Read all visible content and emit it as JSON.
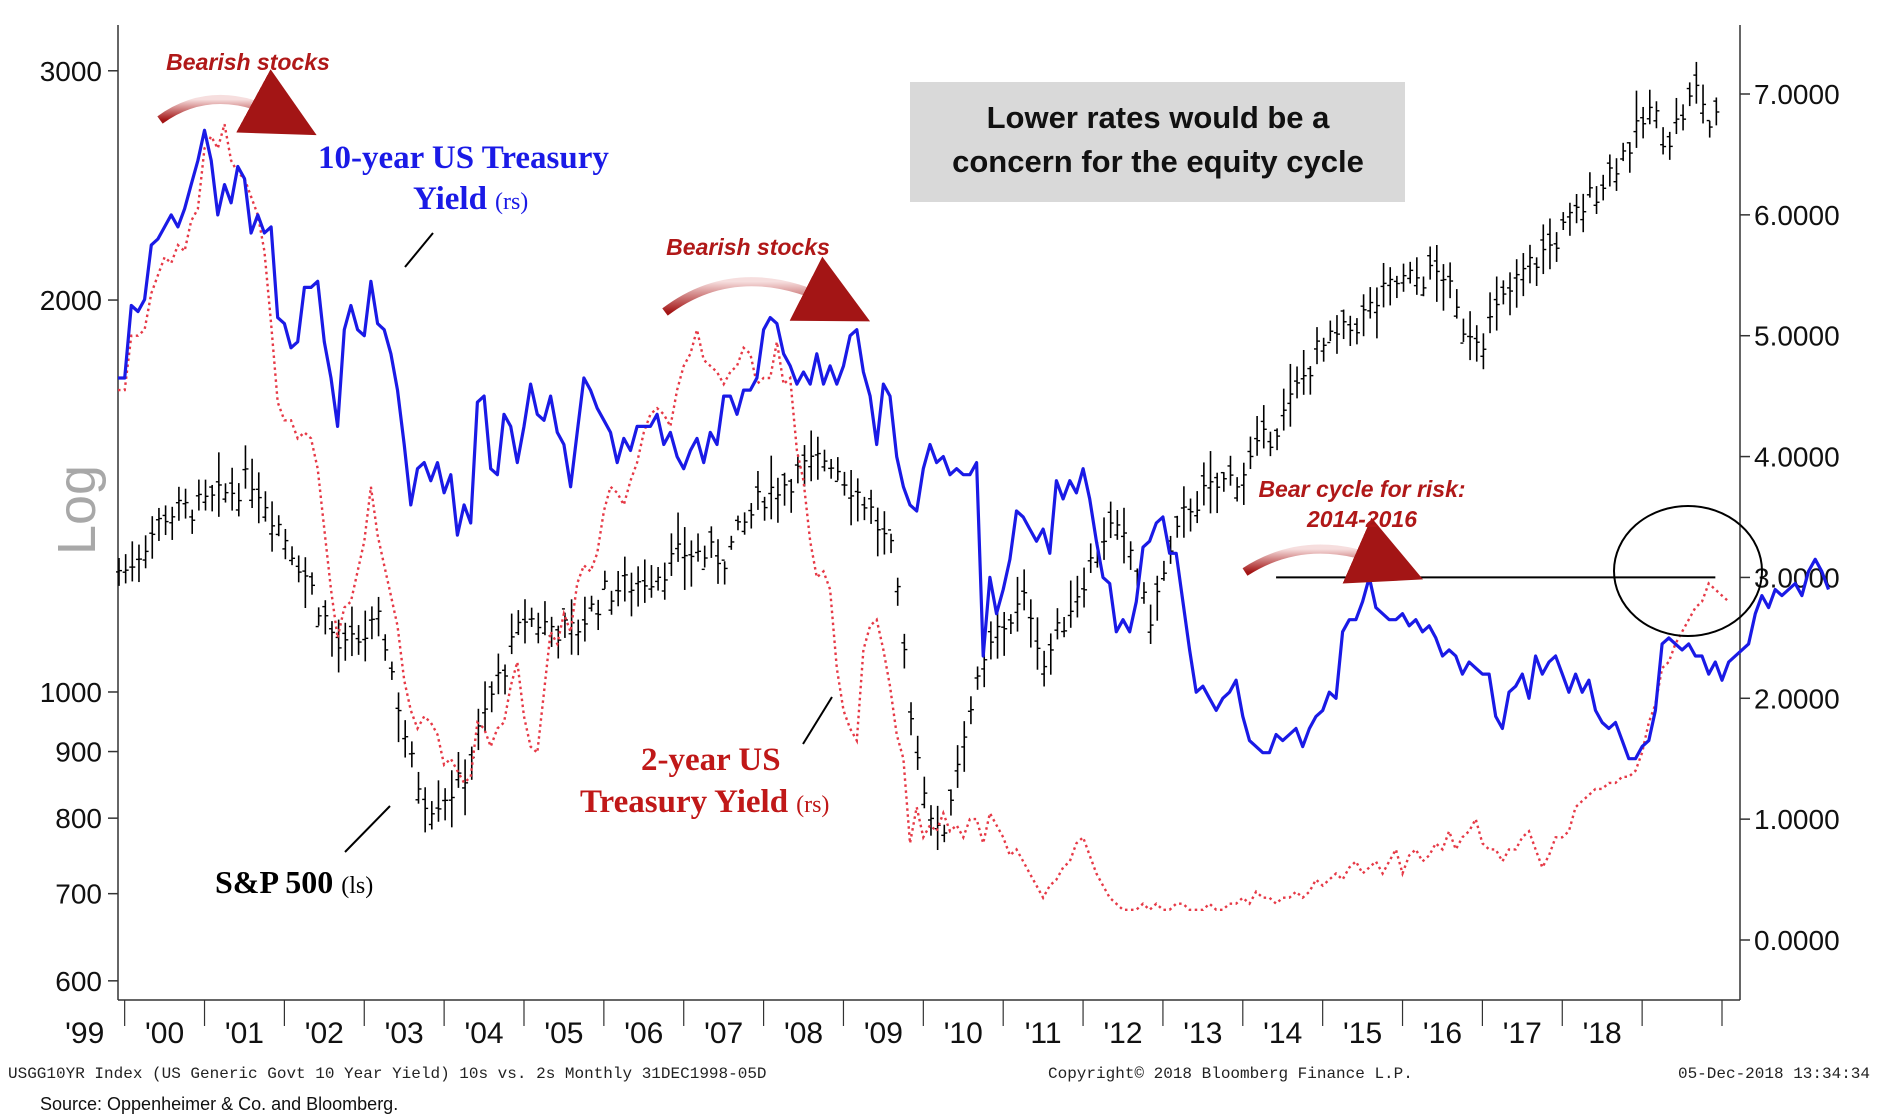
{
  "chart_data": {
    "type": "line",
    "x_start": "1998-12",
    "x_end": "2018-12",
    "frequency": "Monthly",
    "left_axis": {
      "scale": "log",
      "label": "Log",
      "ticks": [
        600,
        700,
        800,
        900,
        1000,
        2000,
        3000
      ],
      "range": [
        580,
        3400
      ]
    },
    "right_axis": {
      "ticks": [
        "7.0000",
        "6.0000",
        "5.0000",
        "4.0000",
        "3.0000",
        "2.0000",
        "1.0000",
        "0.0000"
      ],
      "range": [
        -0.4,
        7.3
      ]
    },
    "x_tick_labels": [
      "'99",
      "'00",
      "'01",
      "'02",
      "'03",
      "'04",
      "'05",
      "'06",
      "'07",
      "'08",
      "'09",
      "'10",
      "'11",
      "'12",
      "'13",
      "'14",
      "'15",
      "'16",
      "'17",
      "'18"
    ],
    "series": [
      {
        "name": "S&P 500",
        "axis": "left",
        "style": "ohlc-bars",
        "color": "#000000",
        "keypoints": [
          [
            1999.0,
            1240
          ],
          [
            1999.5,
            1370
          ],
          [
            2000.0,
            1390
          ],
          [
            2000.6,
            1460
          ],
          [
            2001.2,
            1250
          ],
          [
            2001.7,
            1070
          ],
          [
            2002.2,
            1130
          ],
          [
            2002.6,
            870
          ],
          [
            2002.8,
            820
          ],
          [
            2003.2,
            850
          ],
          [
            2003.6,
            1000
          ],
          [
            2004.0,
            1140
          ],
          [
            2004.6,
            1110
          ],
          [
            2005.0,
            1190
          ],
          [
            2005.6,
            1230
          ],
          [
            2006.0,
            1280
          ],
          [
            2006.5,
            1270
          ],
          [
            2007.0,
            1420
          ],
          [
            2007.8,
            1520
          ],
          [
            2008.3,
            1390
          ],
          [
            2008.6,
            1270
          ],
          [
            2008.9,
            900
          ],
          [
            2009.2,
            760
          ],
          [
            2009.5,
            940
          ],
          [
            2009.9,
            1110
          ],
          [
            2010.3,
            1180
          ],
          [
            2010.5,
            1050
          ],
          [
            2010.9,
            1190
          ],
          [
            2011.3,
            1340
          ],
          [
            2011.6,
            1280
          ],
          [
            2011.8,
            1130
          ],
          [
            2012.3,
            1390
          ],
          [
            2012.7,
            1440
          ],
          [
            2013.0,
            1480
          ],
          [
            2013.5,
            1630
          ],
          [
            2013.9,
            1820
          ],
          [
            2014.3,
            1890
          ],
          [
            2014.9,
            2060
          ],
          [
            2015.5,
            2100
          ],
          [
            2015.7,
            1920
          ],
          [
            2016.0,
            1880
          ],
          [
            2016.1,
            1930
          ],
          [
            2016.5,
            2100
          ],
          [
            2016.9,
            2220
          ],
          [
            2017.3,
            2380
          ],
          [
            2017.9,
            2670
          ],
          [
            2018.1,
            2800
          ],
          [
            2018.3,
            2650
          ],
          [
            2018.7,
            2920
          ],
          [
            2018.85,
            2700
          ],
          [
            2018.95,
            2760
          ]
        ]
      },
      {
        "name": "10-year US Treasury Yield",
        "axis": "right",
        "style": "solid",
        "color": "#1a1ae6",
        "values": [
          4.65,
          4.65,
          5.25,
          5.2,
          5.3,
          5.75,
          5.8,
          5.9,
          6.0,
          5.9,
          6.05,
          6.25,
          6.45,
          6.7,
          6.45,
          6.0,
          6.25,
          6.1,
          6.4,
          6.3,
          5.85,
          6.0,
          5.85,
          5.9,
          5.15,
          5.1,
          4.9,
          4.95,
          5.4,
          5.4,
          5.45,
          4.95,
          4.65,
          4.25,
          5.05,
          5.25,
          5.05,
          5.0,
          5.45,
          5.1,
          5.05,
          4.85,
          4.55,
          4.1,
          3.6,
          3.9,
          3.95,
          3.8,
          3.95,
          3.7,
          3.85,
          3.35,
          3.6,
          3.45,
          4.45,
          4.5,
          3.9,
          3.85,
          4.35,
          4.25,
          3.95,
          4.25,
          4.6,
          4.35,
          4.3,
          4.5,
          4.2,
          4.1,
          3.75,
          4.2,
          4.65,
          4.55,
          4.4,
          4.3,
          4.2,
          3.95,
          4.15,
          4.05,
          4.25,
          4.25,
          4.25,
          4.35,
          4.1,
          4.2,
          4.0,
          3.9,
          4.05,
          4.15,
          3.95,
          4.2,
          4.1,
          4.5,
          4.5,
          4.35,
          4.55,
          4.55,
          4.65,
          5.05,
          5.15,
          5.1,
          4.85,
          4.75,
          4.6,
          4.7,
          4.6,
          4.85,
          4.6,
          4.75,
          4.6,
          4.75,
          5.0,
          5.05,
          4.7,
          4.5,
          4.1,
          4.6,
          4.5,
          4.0,
          3.75,
          3.6,
          3.55,
          3.9,
          4.1,
          3.95,
          4.0,
          3.85,
          3.9,
          3.85,
          3.85,
          3.95,
          2.35,
          3.0,
          2.7,
          2.9,
          3.15,
          3.55,
          3.5,
          3.4,
          3.3,
          3.4,
          3.2,
          3.8,
          3.65,
          3.8,
          3.7,
          3.9,
          3.65,
          3.3,
          3.0,
          2.95,
          2.55,
          2.65,
          2.55,
          2.8,
          3.25,
          3.3,
          3.45,
          3.5,
          3.2,
          3.2,
          2.8,
          2.4,
          2.05,
          2.1,
          2.0,
          1.9,
          2.0,
          2.05,
          2.15,
          1.85,
          1.65,
          1.6,
          1.55,
          1.55,
          1.7,
          1.65,
          1.7,
          1.75,
          1.6,
          1.75,
          1.85,
          1.9,
          2.05,
          2.0,
          2.55,
          2.65,
          2.65,
          2.8,
          3.0,
          2.75,
          2.7,
          2.65,
          2.65,
          2.7,
          2.6,
          2.65,
          2.55,
          2.6,
          2.5,
          2.35,
          2.4,
          2.35,
          2.2,
          2.3,
          2.25,
          2.2,
          2.2,
          1.85,
          1.75,
          2.05,
          2.1,
          2.2,
          2.0,
          2.35,
          2.2,
          2.3,
          2.35,
          2.2,
          2.05,
          2.2,
          2.05,
          2.15,
          1.9,
          1.8,
          1.75,
          1.8,
          1.65,
          1.5,
          1.5,
          1.6,
          1.65,
          1.9,
          2.45,
          2.5,
          2.45,
          2.4,
          2.45,
          2.35,
          2.35,
          2.2,
          2.3,
          2.15,
          2.3,
          2.35,
          2.4,
          2.45,
          2.7,
          2.85,
          2.75,
          2.9,
          2.85,
          2.9,
          2.95,
          2.85,
          3.05,
          3.15,
          3.05,
          2.9
        ]
      },
      {
        "name": "2-year US Treasury Yield",
        "axis": "right",
        "style": "dotted",
        "color": "#e63946",
        "values": [
          4.55,
          4.55,
          5.0,
          5.0,
          5.05,
          5.35,
          5.5,
          5.65,
          5.6,
          5.75,
          5.7,
          5.95,
          6.05,
          6.55,
          6.65,
          6.55,
          6.75,
          6.45,
          6.35,
          6.3,
          6.15,
          6.0,
          5.7,
          5.1,
          4.45,
          4.3,
          4.3,
          4.15,
          4.2,
          4.15,
          3.9,
          3.4,
          2.9,
          2.5,
          2.75,
          2.8,
          3.05,
          3.3,
          3.75,
          3.35,
          3.1,
          2.85,
          2.6,
          2.15,
          1.9,
          1.75,
          1.85,
          1.8,
          1.7,
          1.45,
          1.5,
          1.4,
          1.3,
          1.35,
          1.8,
          1.75,
          1.6,
          1.75,
          1.8,
          2.1,
          2.3,
          1.85,
          1.6,
          1.55,
          2.05,
          2.55,
          2.45,
          2.7,
          2.55,
          2.95,
          3.1,
          3.05,
          3.2,
          3.55,
          3.75,
          3.7,
          3.6,
          3.8,
          3.95,
          4.2,
          4.35,
          4.4,
          4.35,
          4.25,
          4.55,
          4.75,
          4.85,
          5.05,
          4.8,
          4.75,
          4.7,
          4.6,
          4.7,
          4.75,
          4.9,
          4.85,
          4.6,
          4.65,
          4.65,
          4.95,
          4.6,
          4.65,
          4.05,
          3.8,
          3.3,
          3.0,
          3.05,
          2.9,
          2.25,
          1.9,
          1.75,
          1.65,
          2.4,
          2.6,
          2.65,
          2.4,
          2.1,
          1.7,
          1.5,
          0.8,
          1.1,
          0.85,
          0.95,
          0.9,
          1.05,
          0.9,
          0.95,
          0.85,
          1.0,
          1.0,
          0.8,
          1.05,
          0.95,
          0.85,
          0.7,
          0.75,
          0.65,
          0.55,
          0.45,
          0.35,
          0.45,
          0.5,
          0.6,
          0.65,
          0.8,
          0.85,
          0.7,
          0.55,
          0.45,
          0.35,
          0.3,
          0.25,
          0.25,
          0.25,
          0.3,
          0.25,
          0.3,
          0.25,
          0.25,
          0.3,
          0.3,
          0.25,
          0.25,
          0.25,
          0.3,
          0.25,
          0.25,
          0.3,
          0.3,
          0.35,
          0.3,
          0.4,
          0.35,
          0.35,
          0.3,
          0.35,
          0.35,
          0.4,
          0.35,
          0.4,
          0.5,
          0.45,
          0.5,
          0.55,
          0.5,
          0.6,
          0.65,
          0.55,
          0.6,
          0.65,
          0.55,
          0.65,
          0.75,
          0.55,
          0.7,
          0.75,
          0.65,
          0.7,
          0.8,
          0.75,
          0.9,
          0.75,
          0.85,
          0.9,
          1.0,
          0.8,
          0.75,
          0.75,
          0.65,
          0.75,
          0.75,
          0.85,
          0.9,
          0.75,
          0.6,
          0.7,
          0.85,
          0.85,
          0.9,
          1.1,
          1.15,
          1.2,
          1.25,
          1.25,
          1.3,
          1.3,
          1.35,
          1.35,
          1.4,
          1.55,
          1.8,
          1.95,
          2.25,
          2.3,
          2.45,
          2.55,
          2.65,
          2.75,
          2.8,
          2.95,
          2.9,
          2.85,
          2.8
        ]
      }
    ],
    "reference_line": {
      "value": 3.0,
      "axis": "right",
      "from": "2013-06",
      "to": "2018-12"
    }
  },
  "labels": {
    "log": "Log",
    "ten_year_line1": "10-year US Treasury",
    "ten_year_line2": "Yield",
    "ten_year_rs": "(rs)",
    "two_year_line1": "2-year US",
    "two_year_line2": "Treasury Yield",
    "two_year_rs": "(rs)",
    "spx": "S&P 500",
    "spx_ls": "(ls)",
    "bearish_1": "Bearish stocks",
    "bearish_2": "Bearish stocks",
    "bear_cycle_1": "Bear cycle for risk:",
    "bear_cycle_2": "2014-2016",
    "box_line1": "Lower rates would be a",
    "box_line2": "concern for the equity cycle"
  },
  "footer": {
    "left": "USGG10YR Index (US Generic Govt 10 Year Yield) 10s vs. 2s  Monthly 31DEC1998-05D",
    "middle": "Copyright© 2018 Bloomberg Finance L.P.",
    "right": "05-Dec-2018 13:34:34",
    "source": "Source: Oppenheimer & Co. and Bloomberg."
  },
  "colors": {
    "ten_year": "#1a1ae6",
    "two_year": "#e63946",
    "spx": "#000000",
    "annotation_red": "#b01818",
    "box_bg": "#d9d9d9"
  }
}
